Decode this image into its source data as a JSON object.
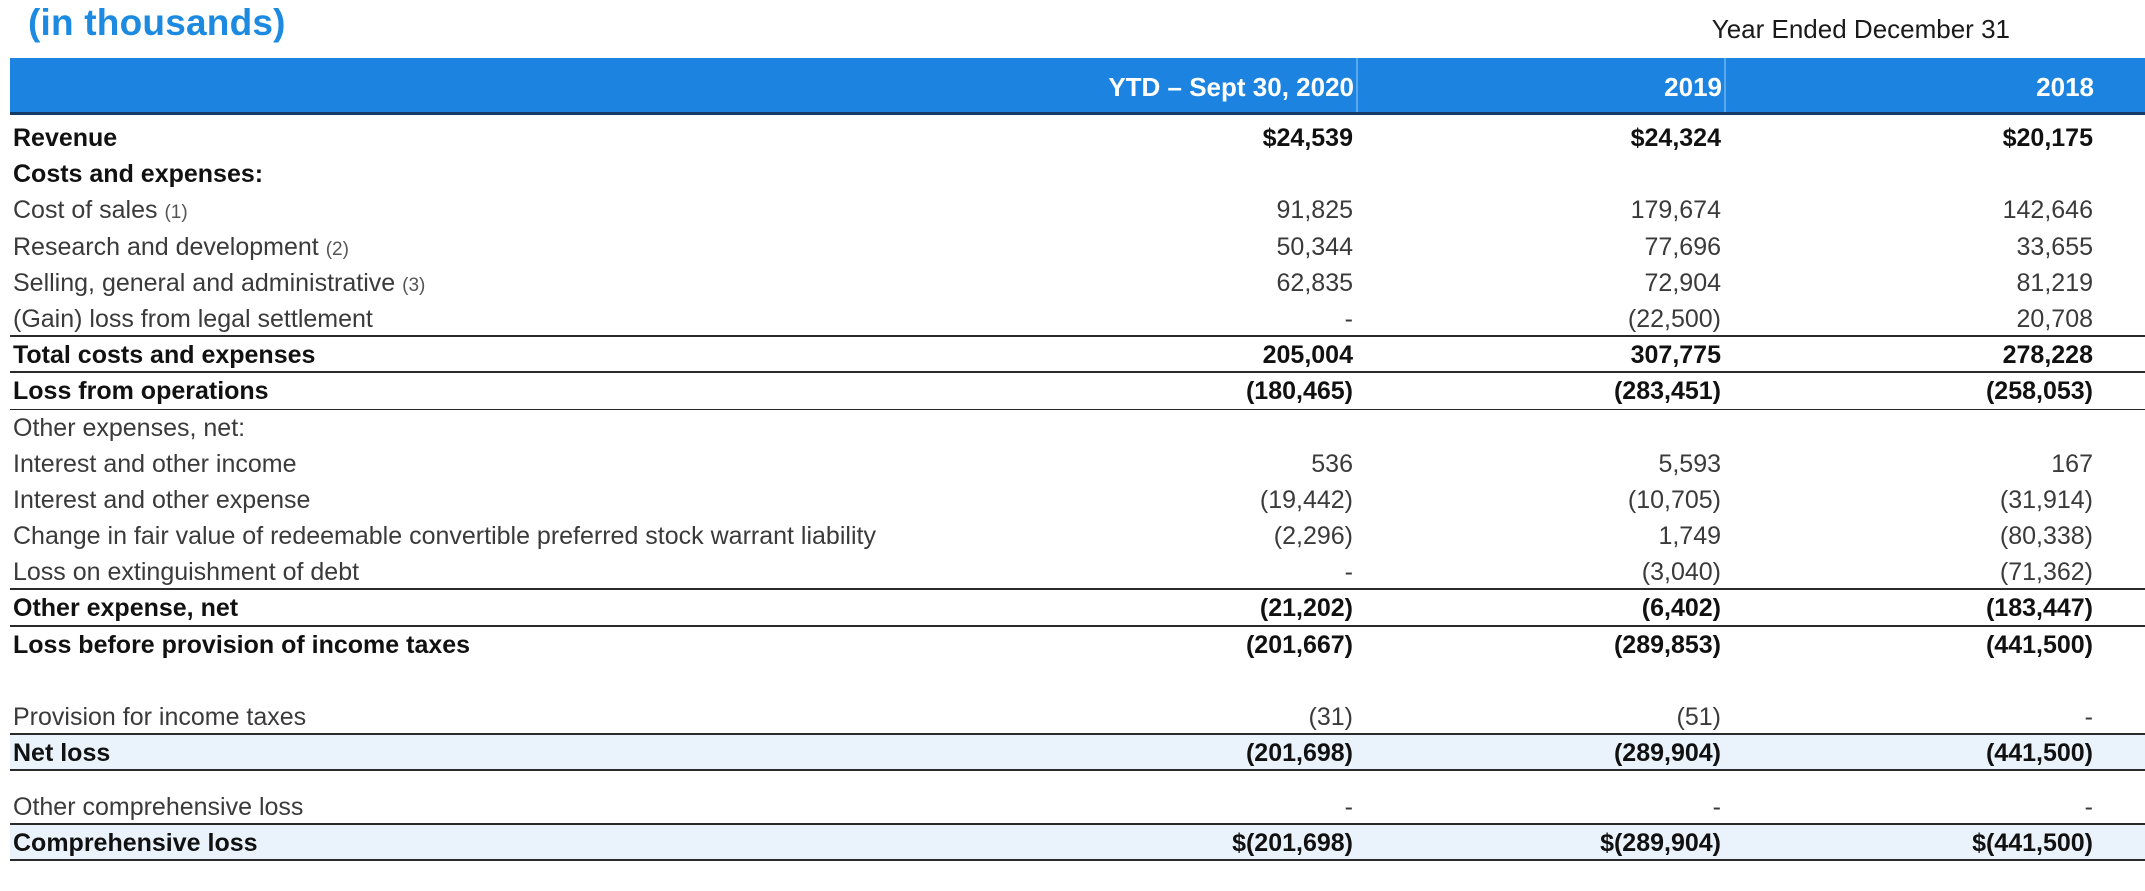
{
  "units_label": "(in thousands)",
  "period_header": "Year Ended December 31",
  "columns": [
    "YTD – Sept 30, 2020",
    "2019",
    "2018"
  ],
  "rows": [
    {
      "label": "Revenue",
      "fn": "",
      "values": [
        "$24,539",
        "$24,324",
        "$20,175"
      ]
    },
    {
      "label": "Costs and expenses:",
      "fn": "",
      "values": [
        "",
        "",
        ""
      ]
    },
    {
      "label": "Cost of sales",
      "fn": "(1)",
      "values": [
        "91,825",
        "179,674",
        "142,646"
      ]
    },
    {
      "label": "Research and development",
      "fn": "(2)",
      "values": [
        "50,344",
        "77,696",
        "33,655"
      ]
    },
    {
      "label": "Selling, general and administrative",
      "fn": "(3)",
      "values": [
        "62,835",
        "72,904",
        "81,219"
      ]
    },
    {
      "label": "(Gain) loss from legal settlement",
      "fn": "",
      "values": [
        "-",
        "(22,500)",
        "20,708"
      ]
    },
    {
      "label": "Total costs and expenses",
      "fn": "",
      "values": [
        "205,004",
        "307,775",
        "278,228"
      ]
    },
    {
      "label": "Loss from operations",
      "fn": "",
      "values": [
        "(180,465)",
        "(283,451)",
        "(258,053)"
      ]
    },
    {
      "label": "Other expenses, net:",
      "fn": "",
      "values": [
        "",
        "",
        ""
      ]
    },
    {
      "label": "Interest and other income",
      "fn": "",
      "values": [
        "536",
        "5,593",
        "167"
      ]
    },
    {
      "label": "Interest and other expense",
      "fn": "",
      "values": [
        "(19,442)",
        "(10,705)",
        "(31,914)"
      ]
    },
    {
      "label": "Change in fair value of redeemable convertible preferred stock warrant liability",
      "fn": "",
      "values": [
        "(2,296)",
        "1,749",
        "(80,338)"
      ]
    },
    {
      "label": "Loss on extinguishment of debt",
      "fn": "",
      "values": [
        "-",
        "(3,040)",
        "(71,362)"
      ]
    },
    {
      "label": "Other expense, net",
      "fn": "",
      "values": [
        "(21,202)",
        "(6,402)",
        "(183,447)"
      ]
    },
    {
      "label": "Loss before provision of income taxes",
      "fn": "",
      "values": [
        "(201,667)",
        "(289,853)",
        "(441,500)"
      ]
    },
    {
      "label": "Provision for income taxes",
      "fn": "",
      "values": [
        "(31)",
        "(51)",
        "-"
      ]
    },
    {
      "label": "Net loss",
      "fn": "",
      "values": [
        "(201,698)",
        "(289,904)",
        "(441,500)"
      ]
    },
    {
      "label": "Other comprehensive loss",
      "fn": "",
      "values": [
        "-",
        "-",
        "-"
      ]
    },
    {
      "label": "Comprehensive loss",
      "fn": "",
      "values": [
        "$(201,698)",
        "$(289,904)",
        "$(441,500)"
      ]
    }
  ]
}
